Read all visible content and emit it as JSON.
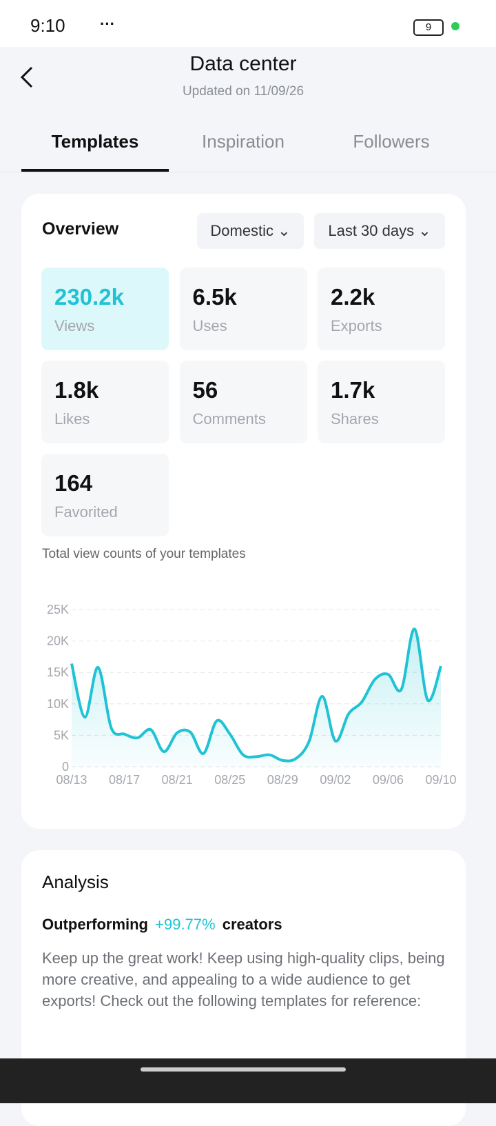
{
  "status_bar": {
    "time": "9:10",
    "battery": "9"
  },
  "header": {
    "title": "Data center",
    "subtitle": "Updated on 11/09/26"
  },
  "tabs": [
    "Templates",
    "Inspiration",
    "Followers"
  ],
  "overview": {
    "title": "Overview",
    "filters": [
      "Domestic",
      "Last 30 days"
    ],
    "stats": [
      {
        "value": "230.2k",
        "label": "Views"
      },
      {
        "value": "6.5k",
        "label": "Uses"
      },
      {
        "value": "2.2k",
        "label": "Exports"
      },
      {
        "value": "1.8k",
        "label": "Likes"
      },
      {
        "value": "56",
        "label": "Comments"
      },
      {
        "value": "1.7k",
        "label": "Shares"
      },
      {
        "value": "164",
        "label": "Favorited"
      }
    ]
  },
  "chart_data": {
    "type": "line",
    "title": "Total view counts of your templates",
    "categories": [
      "08/13",
      null,
      null,
      null,
      "08/17",
      null,
      null,
      null,
      "08/21",
      null,
      null,
      null,
      "08/25",
      null,
      null,
      null,
      "08/29",
      null,
      null,
      null,
      "09/02",
      null,
      null,
      null,
      "09/06",
      null,
      null,
      null,
      "09/10"
    ],
    "values": [
      16400,
      7900,
      15800,
      6200,
      5200,
      4600,
      5900,
      2400,
      5400,
      5500,
      2100,
      7300,
      5200,
      1900,
      1600,
      1900,
      1000,
      1300,
      4000,
      11200,
      4100,
      8400,
      10300,
      13900,
      14700,
      12300,
      21900,
      10600,
      16000
    ],
    "color": "#1fc3d3",
    "ylim": [
      0,
      25000
    ],
    "yticks": [
      0,
      {
        "value": 5000,
        "label": "5K"
      },
      {
        "value": 10000,
        "label": "10K"
      },
      {
        "value": 15000,
        "label": "15K"
      },
      {
        "value": 20000,
        "label": "20K"
      },
      {
        "value": 25000,
        "label": "25K"
      }
    ],
    "grid": true
  },
  "analysis": {
    "title": "Analysis",
    "headline": [
      "Outperforming",
      "+99.77%",
      "creators"
    ],
    "text": "Keep up the great work! Keep using high-quality clips, being more creative, and appealing to a wide audience to get exports! Check out the following templates for reference:"
  }
}
